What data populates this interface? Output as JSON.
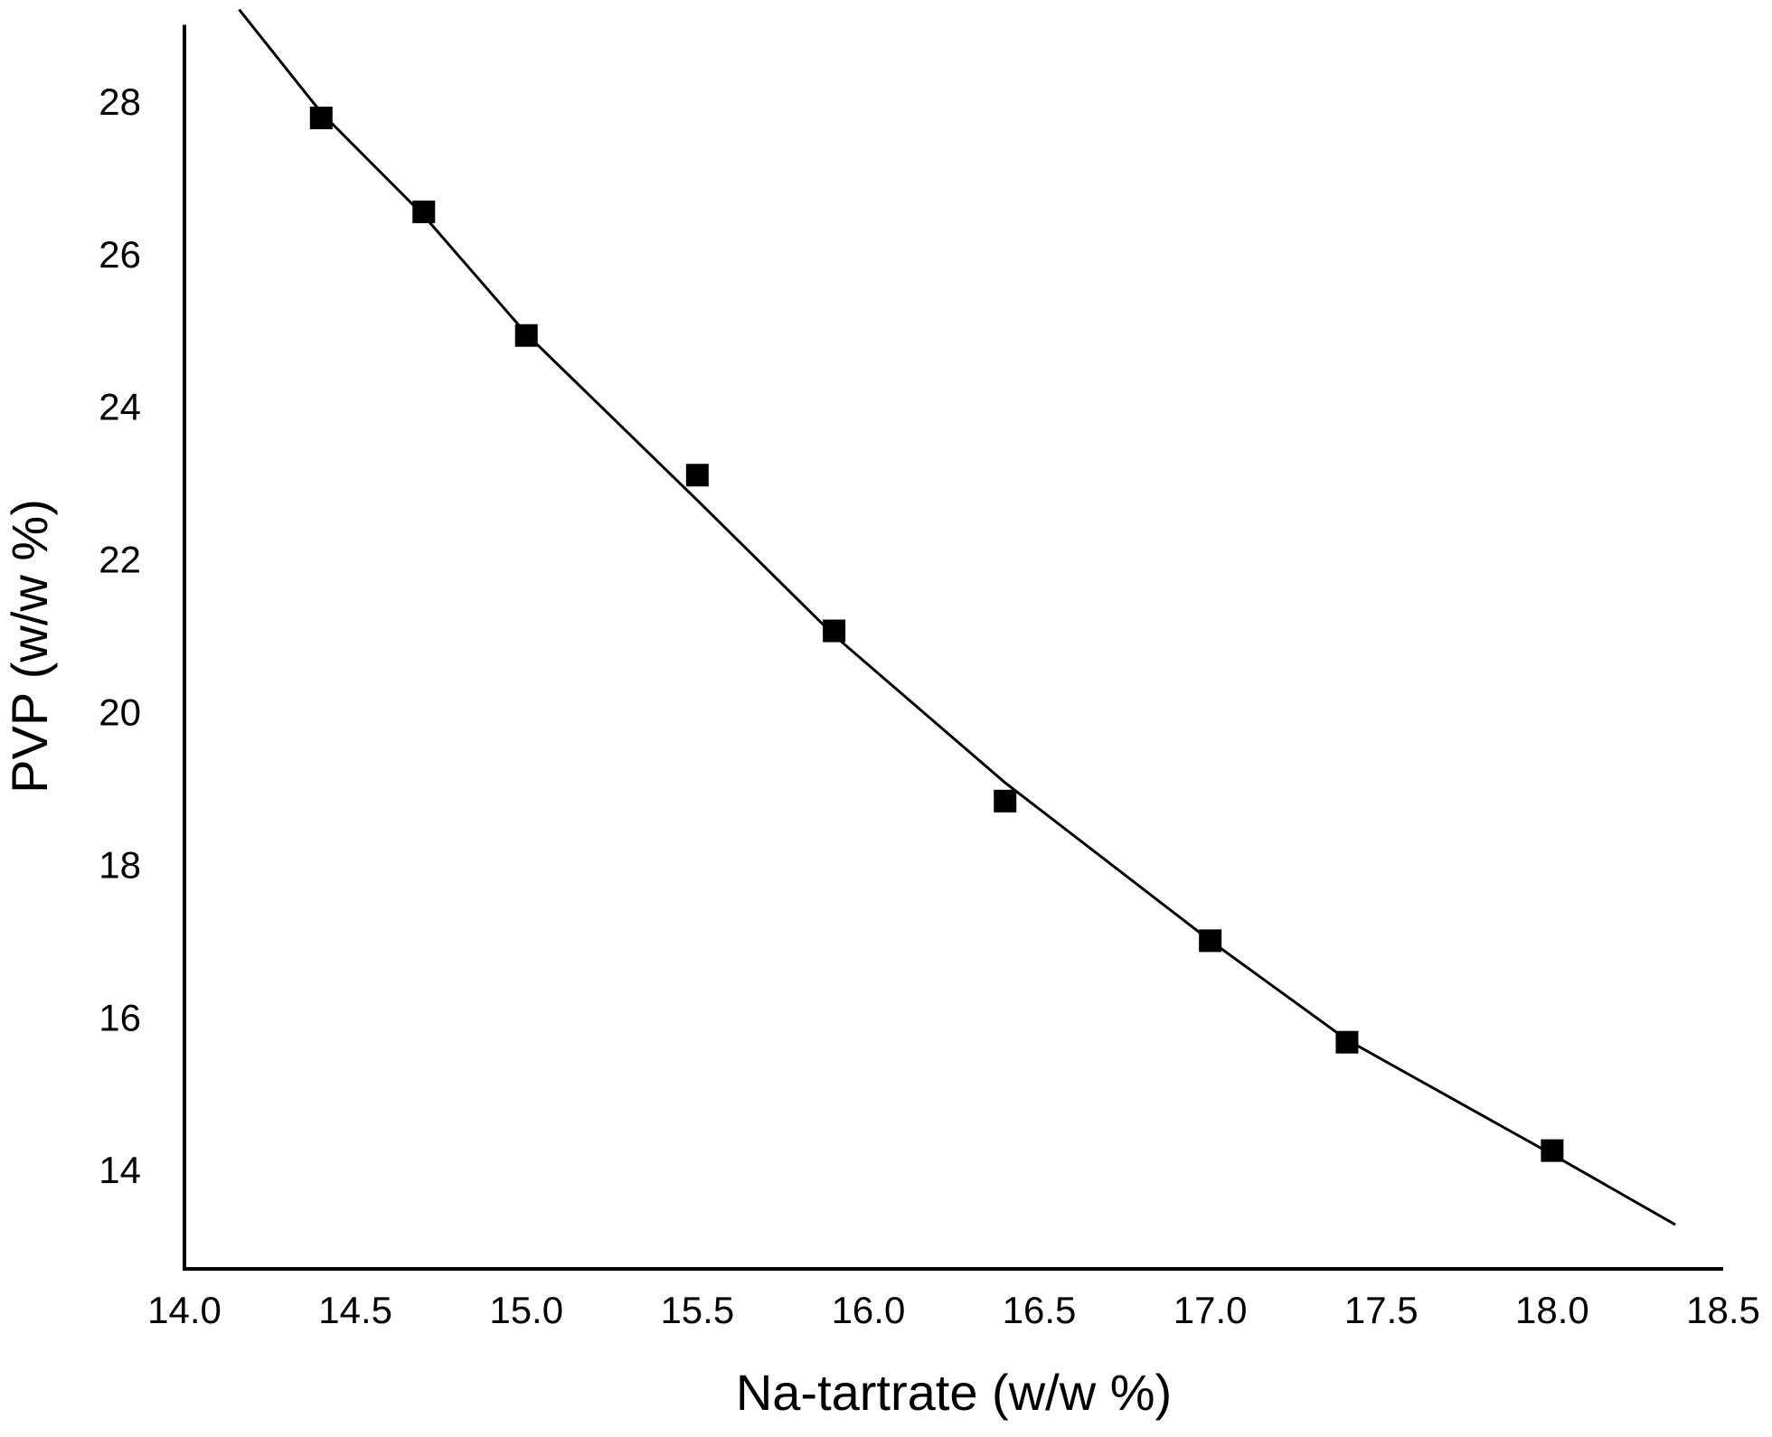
{
  "chart_data": {
    "type": "scatter",
    "x_label": "Na-tartrate (w/w %)",
    "y_label": "PVP (w/w %)",
    "xlim": [
      14.0,
      18.5
    ],
    "ylim": [
      12.7,
      29
    ],
    "xticks": [
      {
        "value": 14.0,
        "label": "14.0"
      },
      {
        "value": 14.5,
        "label": "14.5"
      },
      {
        "value": 15.0,
        "label": "15.0"
      },
      {
        "value": 15.5,
        "label": "15.5"
      },
      {
        "value": 16.0,
        "label": "16.0"
      },
      {
        "value": 16.5,
        "label": "16.5"
      },
      {
        "value": 17.0,
        "label": "17.0"
      },
      {
        "value": 17.5,
        "label": "17.5"
      },
      {
        "value": 18.0,
        "label": "18.0"
      },
      {
        "value": 18.5,
        "label": "18.5"
      }
    ],
    "yticks": [
      14,
      16,
      18,
      20,
      22,
      24,
      26,
      28
    ],
    "grid": false,
    "series": [
      {
        "mode": "markers",
        "marker": "square",
        "color": "#000000",
        "x": [
          14.4,
          14.7,
          15.0,
          15.5,
          15.9,
          16.4,
          17.0,
          17.4,
          18.0
        ],
        "values": [
          27.78,
          26.55,
          24.93,
          23.1,
          21.06,
          18.83,
          17.0,
          15.67,
          14.25
        ]
      },
      {
        "mode": "line",
        "color": "#000000",
        "x": [
          14.16,
          14.4,
          14.7,
          15.0,
          15.5,
          15.9,
          16.4,
          17.0,
          17.4,
          18.0,
          18.36
        ],
        "values": [
          29.2,
          27.85,
          26.5,
          24.95,
          22.77,
          21.0,
          19.07,
          17.0,
          15.7,
          14.2,
          13.28
        ]
      }
    ]
  }
}
